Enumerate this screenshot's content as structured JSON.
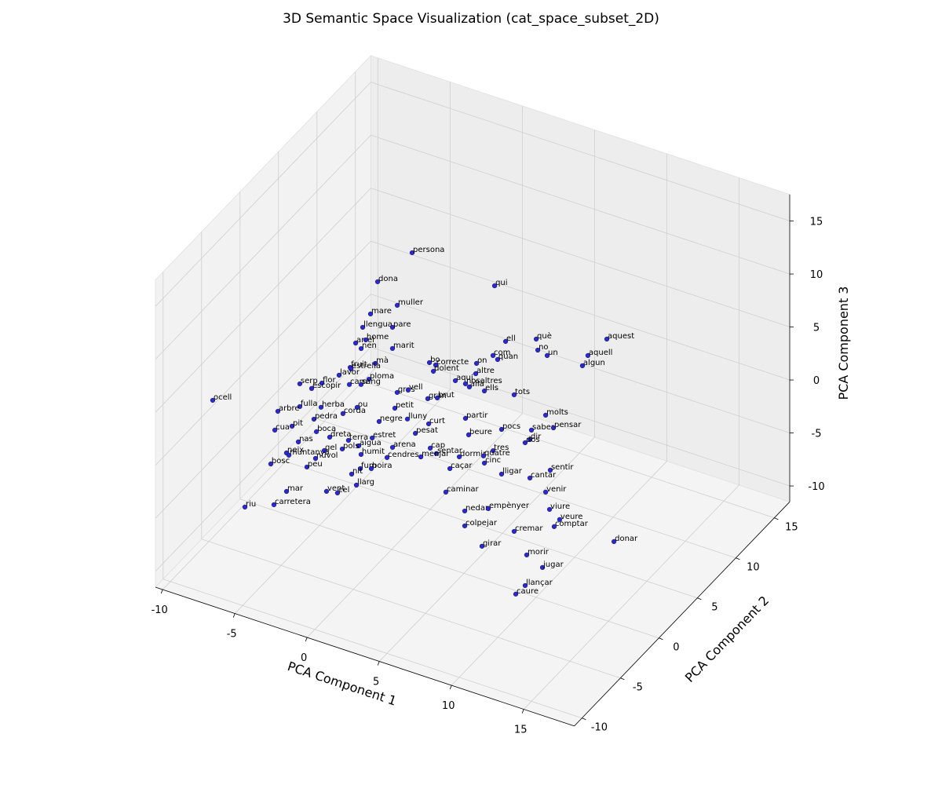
{
  "chart_data": {
    "type": "scatter3d",
    "title": "3D Semantic Space Visualization (cat_space_subset_2D)",
    "xlabel": "PCA Component 1",
    "ylabel": "PCA Component 2",
    "zlabel": "PCA Component 3",
    "xlim": [
      -10.5,
      18.5
    ],
    "ylim": [
      -11,
      17
    ],
    "zlim": [
      -11.5,
      17.5
    ],
    "xticks": [
      -10,
      -5,
      0,
      5,
      10,
      15
    ],
    "yticks": [
      -10,
      -5,
      0,
      5,
      10,
      15
    ],
    "zticks": [
      -10,
      -5,
      0,
      5,
      10,
      15
    ],
    "grid": true,
    "color": "#2a2ad0",
    "points": [
      {
        "label": "persona",
        "x": -1.25,
        "y": 5,
        "z": 12.15
      },
      {
        "label": "qui",
        "x": 4.46,
        "y": 5,
        "z": 11.61
      },
      {
        "label": "dona",
        "x": -3.64,
        "y": 5,
        "z": 8.33
      },
      {
        "label": "muller",
        "x": -2.28,
        "y": 5,
        "z": 6.72
      },
      {
        "label": "mare",
        "x": -4.13,
        "y": 5,
        "z": 5.07
      },
      {
        "label": "llengua",
        "x": -4.67,
        "y": 5,
        "z": 3.57
      },
      {
        "label": "pare",
        "x": -2.61,
        "y": 5,
        "z": 4.5
      },
      {
        "label": "ell",
        "x": 5.22,
        "y": 5,
        "z": 6.7
      },
      {
        "label": "què",
        "x": 7.34,
        "y": 5,
        "z": 7.88
      },
      {
        "label": "aquest",
        "x": 12.23,
        "y": 5,
        "z": 10.09
      },
      {
        "label": "arrel",
        "x": -5.16,
        "y": 5,
        "z": 1.86
      },
      {
        "label": "home",
        "x": -4.46,
        "y": 5,
        "z": 2.48
      },
      {
        "label": "nen",
        "x": -4.78,
        "y": 5,
        "z": 1.51
      },
      {
        "label": "marit",
        "x": -2.61,
        "y": 5,
        "z": 2.5
      },
      {
        "label": "no",
        "x": 7.45,
        "y": 5,
        "z": 6.89
      },
      {
        "label": "aquell",
        "x": 10.92,
        "y": 5,
        "z": 7.95
      },
      {
        "label": "com",
        "x": 4.35,
        "y": 5,
        "z": 4.98
      },
      {
        "label": "un",
        "x": 8.1,
        "y": 5,
        "z": 6.67
      },
      {
        "label": "quan",
        "x": 4.67,
        "y": 5,
        "z": 4.75
      },
      {
        "label": "mà",
        "x": -3.8,
        "y": 5,
        "z": 0.55
      },
      {
        "label": "bo",
        "x": -0.05,
        "y": 5,
        "z": 2.32
      },
      {
        "label": "correcte",
        "x": 0.38,
        "y": 5,
        "z": 2.29
      },
      {
        "label": "on",
        "x": 3.21,
        "y": 5,
        "z": 3.72
      },
      {
        "label": "algun",
        "x": 10.54,
        "y": 5,
        "z": 6.81
      },
      {
        "label": "fruit",
        "x": -5.54,
        "y": 5,
        "z": -0.61
      },
      {
        "label": "estrella",
        "x": -0.16,
        "y": -5,
        "z": 9.24
      },
      {
        "label": "dolent",
        "x": 5.55,
        "y": -5,
        "z": 11.59
      },
      {
        "label": "altre",
        "x": 8.48,
        "y": -5,
        "z": 12.69
      },
      {
        "label": "lavor",
        "x": -0.98,
        "y": -5,
        "z": 8.27
      },
      {
        "label": "ploma",
        "x": 1.09,
        "y": -5,
        "z": 8.83
      },
      {
        "label": "aquí",
        "x": 7.07,
        "y": -5,
        "z": 11.39
      },
      {
        "label": "nosaltres",
        "x": 7.77,
        "y": -5,
        "z": 11.41
      },
      {
        "label": "serp",
        "x": -3.7,
        "y": -5,
        "z": 6.23
      },
      {
        "label": "flor",
        "x": -2.17,
        "y": -5,
        "z": 6.99
      },
      {
        "label": "carn",
        "x": -0.27,
        "y": -5,
        "z": 7.71
      },
      {
        "label": "sang",
        "x": 0.54,
        "y": -5,
        "z": 8.08
      },
      {
        "label": "allà",
        "x": 8.04,
        "y": -5,
        "z": 11.24
      },
      {
        "label": "ells",
        "x": 9.08,
        "y": -5,
        "z": 11.33
      },
      {
        "label": "escopir",
        "x": -2.88,
        "y": -5,
        "z": 6.16
      },
      {
        "label": "gras",
        "x": 3.04,
        "y": -5,
        "z": 8.46
      },
      {
        "label": "vell",
        "x": 3.8,
        "y": -5,
        "z": 9.03
      },
      {
        "label": "tots",
        "x": 11.14,
        "y": -5,
        "z": 11.9
      },
      {
        "label": "gran",
        "x": 5.16,
        "y": -5,
        "z": 8.83
      },
      {
        "label": "brut",
        "x": 5.82,
        "y": -5,
        "z": 9.2
      },
      {
        "label": "ocell",
        "x": -9.73,
        "y": -5,
        "z": 1.95
      },
      {
        "label": "petit",
        "x": 2.88,
        "y": -5,
        "z": 6.9
      },
      {
        "label": "fulla",
        "x": -3.7,
        "y": -5,
        "z": 4.08
      },
      {
        "label": "herba",
        "x": -2.23,
        "y": -5,
        "z": 4.68
      },
      {
        "label": "arbre",
        "x": -5.22,
        "y": -5,
        "z": 2.95
      },
      {
        "label": "ou",
        "x": 0.27,
        "y": -5,
        "z": 5.8
      },
      {
        "label": "corda",
        "x": -0.71,
        "y": -5,
        "z": 4.77
      },
      {
        "label": "molts",
        "x": 13.32,
        "y": -5,
        "z": 10.96
      },
      {
        "label": "lluny",
        "x": 3.75,
        "y": -5,
        "z": 6.27
      },
      {
        "label": "partir",
        "x": 7.77,
        "y": -5,
        "z": 8.15
      },
      {
        "label": "curt",
        "x": 5.22,
        "y": -5,
        "z": 6.48
      },
      {
        "label": "pit",
        "x": -4.24,
        "y": -5,
        "z": 1.99
      },
      {
        "label": "cua",
        "x": -5.43,
        "y": -5,
        "z": 1.08
      },
      {
        "label": "pedra",
        "x": -2.72,
        "y": -5,
        "z": 3.34
      },
      {
        "label": "negre",
        "x": 1.79,
        "y": -5,
        "z": 5.15
      },
      {
        "label": "pesat",
        "x": 4.3,
        "y": -5,
        "z": 5.17
      },
      {
        "label": "beure",
        "x": 7.99,
        "y": -5,
        "z": 6.7
      },
      {
        "label": "pocs",
        "x": 10.27,
        "y": -5,
        "z": 8.24
      },
      {
        "label": "saber",
        "x": 12.34,
        "y": -5,
        "z": 9.11
      },
      {
        "label": "pensar",
        "x": 13.86,
        "y": -5,
        "z": 10.01
      },
      {
        "label": "boca",
        "x": -2.55,
        "y": -5,
        "z": 2.23
      },
      {
        "label": "dreta",
        "x": -1.63,
        "y": -5,
        "z": 2.13
      },
      {
        "label": "dir",
        "x": 12.23,
        "y": -5,
        "z": 8.17
      },
      {
        "label": "dos",
        "x": 11.9,
        "y": -5,
        "z": 7.72
      },
      {
        "label": "nas",
        "x": -3.8,
        "y": -5,
        "z": 0.7
      },
      {
        "label": "aigua",
        "x": 0.38,
        "y": -5,
        "z": 2.22
      },
      {
        "label": "arena",
        "x": 2.72,
        "y": -5,
        "z": 3.13
      },
      {
        "label": "cap",
        "x": 5.33,
        "y": -5,
        "z": 4.24
      },
      {
        "label": "terra",
        "x": -0.33,
        "y": -5,
        "z": 2.42
      },
      {
        "label": "estret",
        "x": 1.31,
        "y": -5,
        "z": 3.38
      },
      {
        "label": "tres",
        "x": 9.68,
        "y": -5,
        "z": 5.96
      },
      {
        "label": "sentar",
        "x": 5.76,
        "y": -5,
        "z": 3.92
      },
      {
        "label": "dormir",
        "x": 7.34,
        "y": -5,
        "z": 4.33
      },
      {
        "label": "quatre",
        "x": 9.02,
        "y": -5,
        "z": 5.17
      },
      {
        "label": "pols",
        "x": -0.76,
        "y": -5,
        "z": 1.41
      },
      {
        "label": "humit",
        "x": 0.54,
        "y": -5,
        "z": 1.48
      },
      {
        "label": "cendres",
        "x": 2.34,
        "y": -5,
        "z": 2.0
      },
      {
        "label": "menjar",
        "x": 4.68,
        "y": -5,
        "z": 3.12
      },
      {
        "label": "cinc",
        "x": 9.08,
        "y": -5,
        "z": 4.52
      },
      {
        "label": "neix",
        "x": -4.62,
        "y": -5,
        "z": -0.71
      },
      {
        "label": "muntanya",
        "x": -4.46,
        "y": -5,
        "z": -0.85
      },
      {
        "label": "gel",
        "x": -2.01,
        "y": -5,
        "z": 0.69
      },
      {
        "label": "núvol",
        "x": -2.61,
        "y": -5,
        "z": -0.32
      },
      {
        "label": "fum",
        "x": 0.49,
        "y": -5,
        "z": 0.12
      },
      {
        "label": "boira",
        "x": 1.25,
        "y": -5,
        "z": 0.47
      },
      {
        "label": "bosc",
        "x": -5.71,
        "y": -5,
        "z": -2.24
      },
      {
        "label": "peu",
        "x": -3.21,
        "y": -5,
        "z": -1.4
      },
      {
        "label": "caçar",
        "x": 6.69,
        "y": -5,
        "z": 2.92
      },
      {
        "label": "lligar",
        "x": 10.27,
        "y": -5,
        "z": 4.02
      },
      {
        "label": "cantar",
        "x": 12.23,
        "y": -5,
        "z": 4.54
      },
      {
        "label": "sentir",
        "x": 13.64,
        "y": -5,
        "z": 5.92
      },
      {
        "label": "nit",
        "x": -0.11,
        "y": -5,
        "z": -0.67
      },
      {
        "label": "llarg",
        "x": 0.22,
        "y": -5,
        "z": -1.56
      },
      {
        "label": "mar",
        "x": -4.62,
        "y": -5,
        "z": -4.34
      },
      {
        "label": "caminar",
        "x": 6.41,
        "y": -5,
        "z": 0.58
      },
      {
        "label": "venir",
        "x": 13.32,
        "y": -5,
        "z": 3.7
      },
      {
        "label": "vent",
        "x": -1.85,
        "y": -5,
        "z": -3.08
      },
      {
        "label": "cel",
        "x": -1.09,
        "y": -5,
        "z": -2.89
      },
      {
        "label": "riu",
        "x": -7.5,
        "y": -5,
        "z": -7.12
      },
      {
        "label": "carretera",
        "x": -5.49,
        "y": -5,
        "z": -5.99
      },
      {
        "label": "nedar",
        "x": 7.72,
        "y": -5,
        "z": -0.61
      },
      {
        "label": "empènyer",
        "x": 9.35,
        "y": -5,
        "z": 0.35
      },
      {
        "label": "viure",
        "x": 13.59,
        "y": -5,
        "z": 2.19
      },
      {
        "label": "veure",
        "x": 14.29,
        "y": -5,
        "z": 1.55
      },
      {
        "label": "comptar",
        "x": 13.91,
        "y": -5,
        "z": 0.71
      },
      {
        "label": "colpejar",
        "x": 7.72,
        "y": -5,
        "z": -2.02
      },
      {
        "label": "cremar",
        "x": 11.14,
        "y": -5,
        "z": -0.99
      },
      {
        "label": "donar",
        "x": 18.05,
        "y": -5,
        "z": 1.17
      },
      {
        "label": "girar",
        "x": 8.91,
        "y": -5,
        "z": -3.4
      },
      {
        "label": "morir",
        "x": 12.01,
        "y": -5,
        "z": -2.82
      },
      {
        "label": "jugar",
        "x": 13.1,
        "y": -5,
        "z": -3.51
      },
      {
        "label": "llançar",
        "x": 11.9,
        "y": -5,
        "z": -5.76
      },
      {
        "label": "caure",
        "x": 11.25,
        "y": -5,
        "z": -6.86
      }
    ]
  }
}
